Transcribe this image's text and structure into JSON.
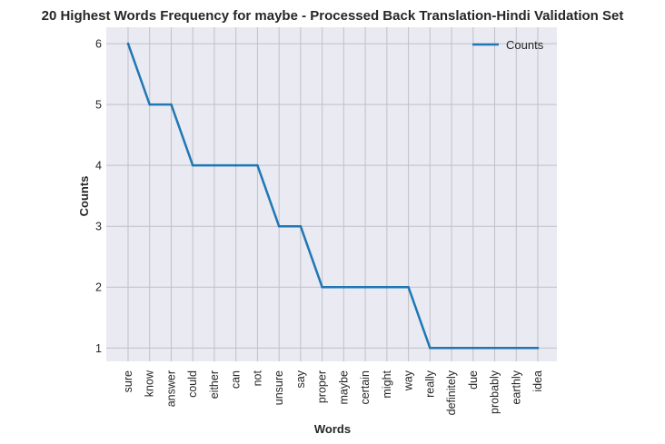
{
  "chart_data": {
    "type": "line",
    "title": "20 Highest Words Frequency for maybe - Processed Back Translation-Hindi Validation Set",
    "xlabel": "Words",
    "ylabel": "Counts",
    "categories": [
      "sure",
      "know",
      "answer",
      "could",
      "either",
      "can",
      "not",
      "unsure",
      "say",
      "proper",
      "maybe",
      "certain",
      "might",
      "way",
      "really",
      "definitely",
      "due",
      "probably",
      "earthly",
      "idea"
    ],
    "series": [
      {
        "name": "Counts",
        "values": [
          6,
          5,
          5,
          4,
          4,
          4,
          4,
          3,
          3,
          2,
          2,
          2,
          2,
          2,
          1,
          1,
          1,
          1,
          1,
          1
        ],
        "color": "#1f77b4"
      }
    ],
    "yticks": [
      "1",
      "2",
      "3",
      "4",
      "5",
      "6"
    ],
    "ylim": [
      0.78,
      6.27
    ],
    "grid": true,
    "legend": "top-right",
    "background": "#eaeaf2",
    "grid_color": "#c0c0c8"
  }
}
